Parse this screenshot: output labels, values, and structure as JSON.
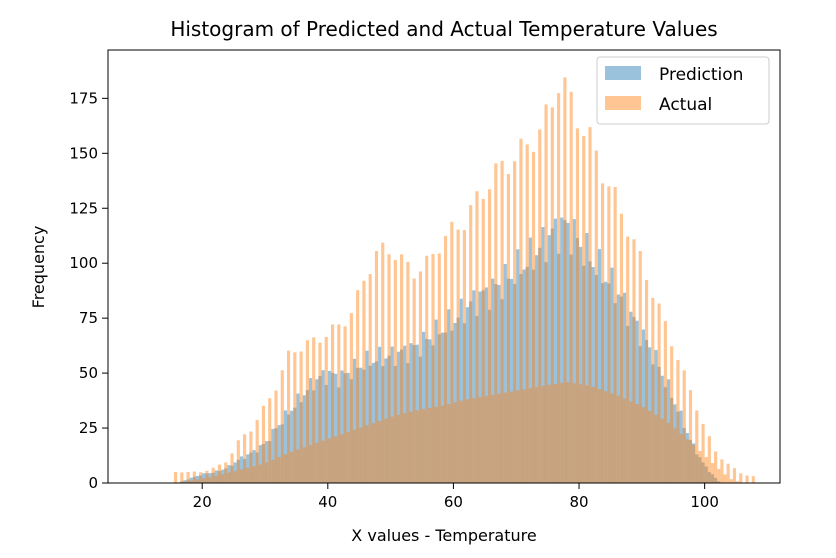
{
  "chart_data": {
    "type": "histogram",
    "title": "Histogram of Predicted and Actual Temperature Values",
    "xlabel": "X values - Temperature",
    "ylabel": "Frequency",
    "xlim": [
      5,
      112
    ],
    "ylim": [
      0,
      197
    ],
    "xticks": [
      20,
      40,
      60,
      80,
      100
    ],
    "yticks": [
      0,
      25,
      50,
      75,
      100,
      125,
      150,
      175
    ],
    "grid": false,
    "legend_position": "top-right",
    "bins": {
      "start": 15,
      "width": 0.5
    },
    "series": [
      {
        "name": "Prediction",
        "color": "#1f77b4",
        "alpha": 0.45,
        "bin_start": 16.0,
        "bin_width": 0.5,
        "profile": [
          [
            16.0,
            0
          ],
          [
            18.0,
            2
          ],
          [
            20.0,
            4
          ],
          [
            22.0,
            5
          ],
          [
            24.0,
            7
          ],
          [
            26.0,
            11
          ],
          [
            28.0,
            14
          ],
          [
            30.0,
            18
          ],
          [
            32.0,
            26
          ],
          [
            34.0,
            33
          ],
          [
            36.0,
            40
          ],
          [
            38.0,
            47
          ],
          [
            40.0,
            50
          ],
          [
            42.0,
            48
          ],
          [
            44.0,
            52
          ],
          [
            46.0,
            55
          ],
          [
            48.0,
            57
          ],
          [
            50.0,
            58
          ],
          [
            52.0,
            60
          ],
          [
            54.0,
            62
          ],
          [
            56.0,
            66
          ],
          [
            58.0,
            70
          ],
          [
            60.0,
            74
          ],
          [
            62.0,
            80
          ],
          [
            64.0,
            85
          ],
          [
            66.0,
            88
          ],
          [
            68.0,
            92
          ],
          [
            70.0,
            97
          ],
          [
            72.0,
            102
          ],
          [
            74.0,
            108
          ],
          [
            76.0,
            115
          ],
          [
            78.0,
            118
          ],
          [
            80.0,
            110
          ],
          [
            82.0,
            102
          ],
          [
            84.0,
            95
          ],
          [
            86.0,
            88
          ],
          [
            88.0,
            78
          ],
          [
            90.0,
            68
          ],
          [
            92.0,
            58
          ],
          [
            94.0,
            45
          ],
          [
            96.0,
            32
          ],
          [
            98.0,
            18
          ],
          [
            100.0,
            8
          ],
          [
            101.5,
            3
          ],
          [
            102.5,
            0
          ]
        ],
        "comb_wobble": 0.06
      },
      {
        "name": "Actual",
        "color": "#ff7f0e",
        "alpha": 0.45,
        "bin_start": 15.5,
        "bin_width": 0.5,
        "base_profile": [
          [
            15.5,
            0
          ],
          [
            18.0,
            1
          ],
          [
            22.0,
            3
          ],
          [
            26.0,
            6
          ],
          [
            30.0,
            9
          ],
          [
            34.0,
            14
          ],
          [
            38.0,
            18
          ],
          [
            42.0,
            22
          ],
          [
            46.0,
            26
          ],
          [
            50.0,
            30
          ],
          [
            54.0,
            33
          ],
          [
            58.0,
            35
          ],
          [
            62.0,
            38
          ],
          [
            66.0,
            40
          ],
          [
            70.0,
            42
          ],
          [
            74.0,
            44
          ],
          [
            78.0,
            46
          ],
          [
            82.0,
            44
          ],
          [
            86.0,
            40
          ],
          [
            90.0,
            35
          ],
          [
            94.0,
            28
          ],
          [
            98.0,
            18
          ],
          [
            102.0,
            7
          ],
          [
            104.0,
            2
          ],
          [
            106.0,
            0
          ]
        ],
        "spike_profile": [
          [
            15.5,
            5
          ],
          [
            18.0,
            5
          ],
          [
            20.0,
            5
          ],
          [
            22.0,
            7
          ],
          [
            24.0,
            10
          ],
          [
            26.0,
            20
          ],
          [
            28.0,
            25
          ],
          [
            30.0,
            35
          ],
          [
            32.0,
            45
          ],
          [
            34.0,
            60
          ],
          [
            36.0,
            62
          ],
          [
            38.0,
            65
          ],
          [
            40.0,
            68
          ],
          [
            42.0,
            72
          ],
          [
            44.0,
            78
          ],
          [
            46.0,
            95
          ],
          [
            48.0,
            105
          ],
          [
            50.0,
            107
          ],
          [
            52.0,
            100
          ],
          [
            54.0,
            96
          ],
          [
            56.0,
            100
          ],
          [
            58.0,
            110
          ],
          [
            60.0,
            115
          ],
          [
            62.0,
            120
          ],
          [
            64.0,
            130
          ],
          [
            66.0,
            138
          ],
          [
            68.0,
            145
          ],
          [
            70.0,
            148
          ],
          [
            72.0,
            155
          ],
          [
            74.0,
            160
          ],
          [
            76.0,
            176
          ],
          [
            77.0,
            186
          ],
          [
            78.0,
            178
          ],
          [
            80.0,
            165
          ],
          [
            82.0,
            155
          ],
          [
            84.0,
            140
          ],
          [
            86.0,
            128
          ],
          [
            88.0,
            115
          ],
          [
            90.0,
            100
          ],
          [
            92.0,
            85
          ],
          [
            94.0,
            70
          ],
          [
            96.0,
            55
          ],
          [
            98.0,
            40
          ],
          [
            100.0,
            25
          ],
          [
            102.0,
            13
          ],
          [
            104.0,
            8
          ],
          [
            106.0,
            4
          ],
          [
            107.5,
            3
          ]
        ],
        "spike_every": 2
      }
    ]
  },
  "legend": {
    "items": [
      {
        "label": "Prediction",
        "color": "#1f77b4"
      },
      {
        "label": "Actual",
        "color": "#ff7f0e"
      }
    ]
  }
}
